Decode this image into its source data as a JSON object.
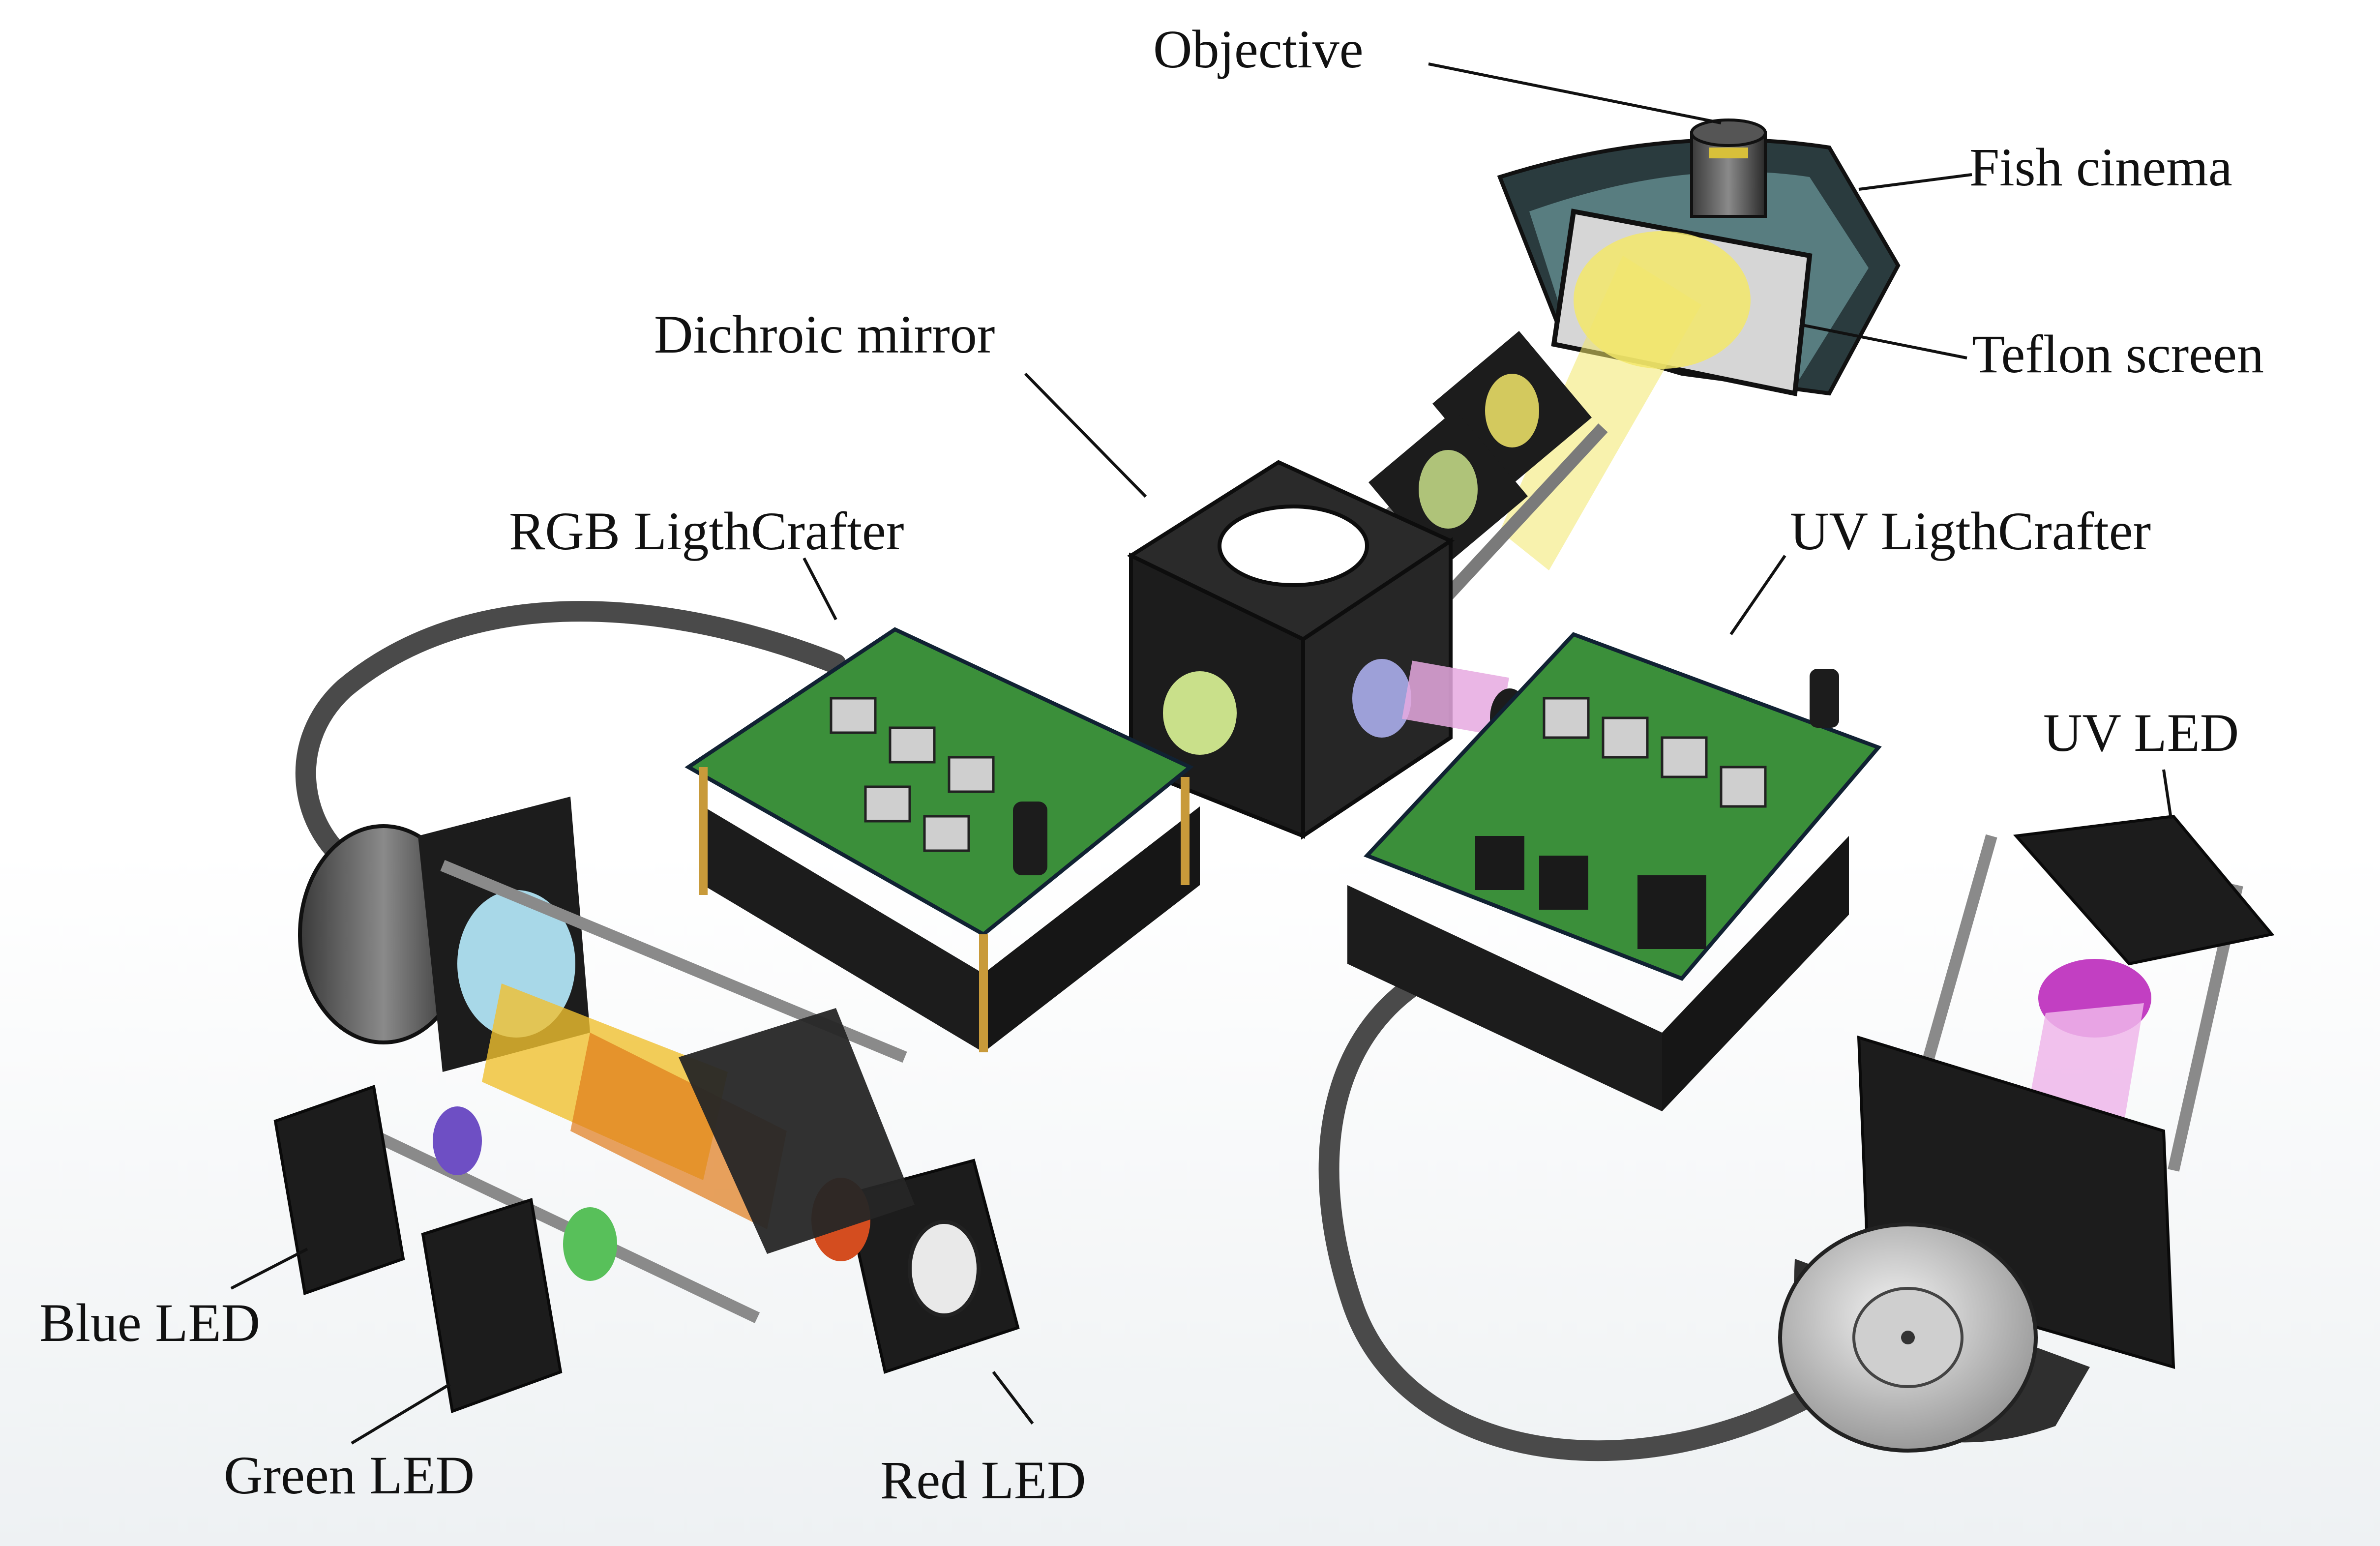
{
  "labels": {
    "objective": "Objective",
    "fish_cinema": "Fish cinema",
    "teflon_screen": "Teflon screen",
    "dichroic_mirror": "Dichroic mirror",
    "rgb_lightcrafter": "RGB LigthCrafter",
    "uv_lightcrafter": "UV LigthCrafter",
    "uv_led": "UV LED",
    "blue_led": "Blue LED",
    "green_led": "Green LED",
    "red_led": "Red LED"
  },
  "colors": {
    "housing": "#1c1c1c",
    "pcb": "#2f8a3a",
    "cable": "#4a4a4a",
    "projection_beam": "#f3e86a",
    "uv_light": "#c23fc2",
    "blue_filter": "#6b9fd6",
    "green_filter": "#58c05a",
    "red_filter": "#d44d1f",
    "yellow_filter": "#f0c030"
  }
}
